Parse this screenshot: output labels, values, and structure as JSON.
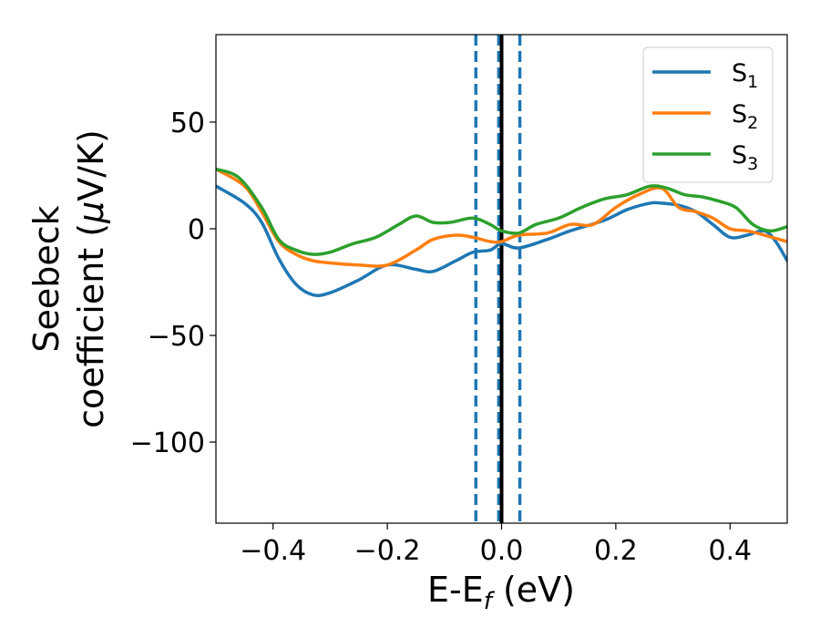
{
  "chart_data": {
    "type": "line",
    "xlabel_main": "E-E",
    "xlabel_sub": "f",
    "xlabel_unit": " (eV)",
    "ylabel_line1": "Seebeck",
    "ylabel_line2_pre": "coefficient  (",
    "ylabel_mu": "μ",
    "ylabel_line2_post": "V/K)",
    "xlim": [
      -0.5,
      0.5
    ],
    "ylim": [
      -138,
      91
    ],
    "xticks": [
      -0.4,
      -0.2,
      0.0,
      0.2,
      0.4
    ],
    "xtick_labels": [
      "−0.4",
      "−0.2",
      "0.0",
      "0.2",
      "0.4"
    ],
    "yticks": [
      50,
      0,
      -50,
      -100
    ],
    "ytick_labels": [
      "50",
      "0",
      "−50",
      "−100"
    ],
    "legend_position": "top-right",
    "vlines": [
      {
        "x": -0.045,
        "style": "dashed",
        "color": "#1f77b4"
      },
      {
        "x": -0.005,
        "style": "dashed",
        "color": "#1f77b4"
      },
      {
        "x": 0.032,
        "style": "dashed",
        "color": "#1f77b4"
      },
      {
        "x": 0.0,
        "style": "solid",
        "color": "#000000"
      }
    ],
    "series": [
      {
        "name": "S",
        "sub": "1",
        "color": "#1f77b4",
        "x": [
          -0.5,
          -0.45,
          -0.42,
          -0.39,
          -0.36,
          -0.33,
          -0.3,
          -0.25,
          -0.2,
          -0.15,
          -0.12,
          -0.08,
          -0.05,
          -0.02,
          0.0,
          0.03,
          0.08,
          0.12,
          0.18,
          0.22,
          0.26,
          0.28,
          0.31,
          0.34,
          0.37,
          0.4,
          0.43,
          0.46,
          0.48,
          0.5
        ],
        "y": [
          20,
          12,
          3,
          -14,
          -26,
          -31,
          -30,
          -24,
          -17,
          -19,
          -20,
          -15,
          -11,
          -10,
          -7,
          -9,
          -5,
          -1,
          4,
          9,
          12,
          12,
          11,
          8,
          2,
          -4,
          -3,
          -1,
          -6,
          -15
        ]
      },
      {
        "name": "S",
        "sub": "2",
        "color": "#ff7f0e",
        "x": [
          -0.5,
          -0.45,
          -0.42,
          -0.39,
          -0.36,
          -0.33,
          -0.3,
          -0.25,
          -0.2,
          -0.15,
          -0.12,
          -0.08,
          -0.05,
          -0.02,
          0.0,
          0.03,
          0.08,
          0.12,
          0.16,
          0.2,
          0.24,
          0.28,
          0.31,
          0.34,
          0.37,
          0.4,
          0.43,
          0.46,
          0.5
        ],
        "y": [
          28,
          20,
          8,
          -6,
          -12,
          -15,
          -16,
          -17,
          -17,
          -10,
          -5,
          -3,
          -4,
          -6,
          -6,
          -3,
          -2,
          2,
          2,
          10,
          16,
          19,
          10,
          8,
          5,
          0,
          -1,
          -3,
          -6
        ]
      },
      {
        "name": "S",
        "sub": "3",
        "color": "#2ca02c",
        "x": [
          -0.5,
          -0.46,
          -0.42,
          -0.39,
          -0.36,
          -0.33,
          -0.3,
          -0.26,
          -0.22,
          -0.18,
          -0.15,
          -0.12,
          -0.09,
          -0.05,
          -0.02,
          0.0,
          0.03,
          0.06,
          0.1,
          0.14,
          0.18,
          0.22,
          0.26,
          0.29,
          0.32,
          0.35,
          0.38,
          0.41,
          0.44,
          0.47,
          0.5
        ],
        "y": [
          28,
          24,
          10,
          -5,
          -10,
          -12,
          -11,
          -7,
          -4,
          2,
          6,
          3,
          3,
          5,
          2,
          -1,
          -2,
          2,
          5,
          10,
          14,
          16,
          20,
          19,
          16,
          15,
          13,
          10,
          2,
          -1,
          1
        ]
      }
    ]
  }
}
